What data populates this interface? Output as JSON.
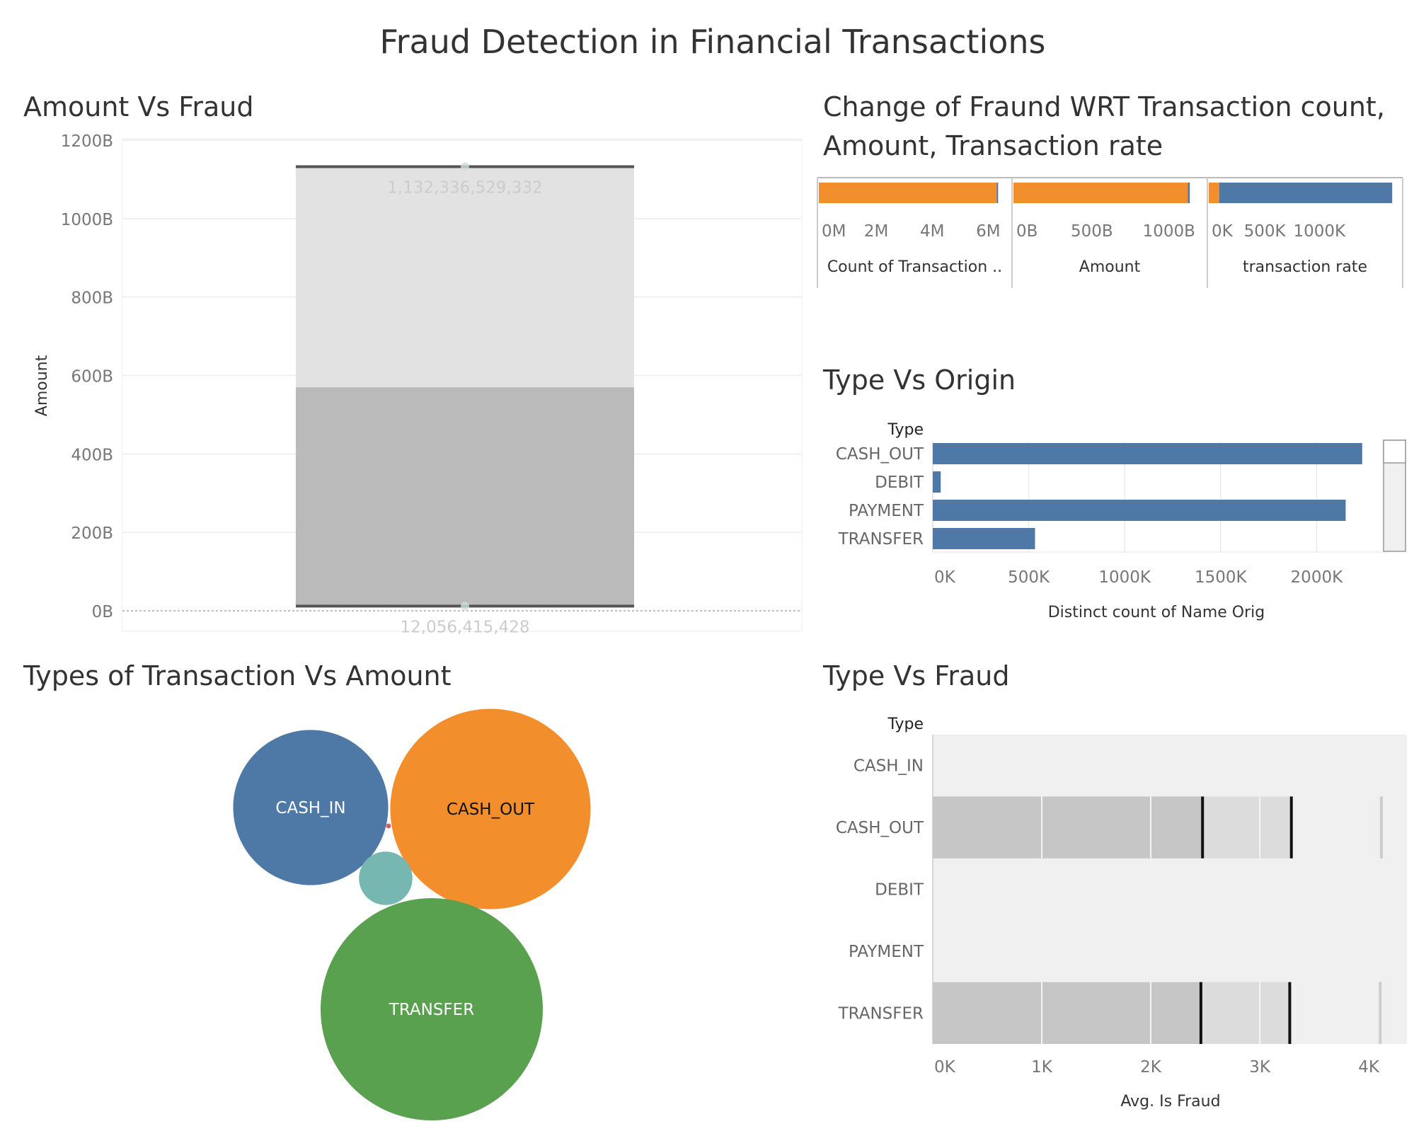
{
  "dashboard_title": "Fraud Detection in Financial Transactions",
  "chart_data": [
    {
      "id": "amount_vs_fraud",
      "type": "bar",
      "title": "Amount Vs Fraud",
      "xlabel": "",
      "ylabel": "Amount",
      "ylim": [
        0,
        1200000000000
      ],
      "yticks": [
        {
          "v": 0,
          "label": "0B"
        },
        {
          "v": 200000000000,
          "label": "200B"
        },
        {
          "v": 400000000000,
          "label": "400B"
        },
        {
          "v": 600000000000,
          "label": "600B"
        },
        {
          "v": 800000000000,
          "label": "800B"
        },
        {
          "v": 1000000000000,
          "label": "1000B"
        },
        {
          "v": 1200000000000,
          "label": "1200B"
        }
      ],
      "bands": [
        {
          "from": 12056415428,
          "to": 570000000000,
          "color": "#bababa"
        },
        {
          "from": 570000000000,
          "to": 1132336529332,
          "color": "#e2e2e2"
        }
      ],
      "markers": [
        {
          "value": 1132336529332,
          "label": "1,132,336,529,332"
        },
        {
          "value": 12056415428,
          "label": "12,056,415,428"
        }
      ],
      "grid": true
    },
    {
      "id": "change_of_fraud",
      "type": "bar",
      "title": "Change of Fraund WRT Transaction count, Amount, Transaction rate",
      "title_lines": [
        "Change of Fraund WRT Transaction count,",
        "Amount, Transaction rate"
      ],
      "panels": [
        {
          "name": "Count of Transaction ..",
          "xlim": [
            0,
            6800000
          ],
          "ticks": [
            {
              "v": 0,
              "label": "0M"
            },
            {
              "v": 2000000,
              "label": "2M"
            },
            {
              "v": 4000000,
              "label": "4M"
            },
            {
              "v": 6000000,
              "label": "6M"
            }
          ],
          "segments": [
            {
              "value": 6354407,
              "color": "#f28e2b"
            },
            {
              "value": 8213,
              "color": "#4e79a7"
            }
          ]
        },
        {
          "name": "Amount",
          "xlim": [
            0,
            1240000000000
          ],
          "ticks": [
            {
              "v": 0,
              "label": "0B"
            },
            {
              "v": 500000000000,
              "label": "500B"
            },
            {
              "v": 1000000000000,
              "label": "1000B"
            }
          ],
          "segments": [
            {
              "value": 1132336529332,
              "color": "#f28e2b"
            },
            {
              "value": 12056415428,
              "color": "#4e79a7"
            }
          ]
        },
        {
          "name": "transaction rate",
          "xlim": [
            0,
            1750000
          ],
          "ticks": [
            {
              "v": 0,
              "label": "0K"
            },
            {
              "v": 500000,
              "label": "500K"
            },
            {
              "v": 1000000,
              "label": "1000K"
            }
          ],
          "segments": [
            {
              "value": 95000,
              "color": "#f28e2b"
            },
            {
              "value": 1585000,
              "color": "#4e79a7"
            }
          ]
        }
      ]
    },
    {
      "id": "type_vs_origin",
      "type": "bar",
      "orientation": "horizontal",
      "title": "Type Vs Origin",
      "ylabel": "Type",
      "xlabel": "Distinct count of Name Orig",
      "categories": [
        "CASH_OUT",
        "DEBIT",
        "PAYMENT",
        "TRANSFER"
      ],
      "values": [
        2237500,
        41432,
        2151495,
        532909
      ],
      "xlim": [
        0,
        2360000
      ],
      "xticks": [
        {
          "v": 0,
          "label": "0K"
        },
        {
          "v": 500000,
          "label": "500K"
        },
        {
          "v": 1000000,
          "label": "1000K"
        },
        {
          "v": 1500000,
          "label": "1500K"
        },
        {
          "v": 2000000,
          "label": "2000K"
        }
      ],
      "color": "#4e79a7",
      "grid": true
    },
    {
      "id": "types_vs_amount",
      "type": "bubble",
      "title": "Types of Transaction Vs Amount",
      "bubbles": [
        {
          "label": "CASH_IN",
          "size": 236367391912,
          "color": "#4e79a7",
          "text_color": "#ffffff"
        },
        {
          "label": "CASH_OUT",
          "size": 394412995224,
          "color": "#f28e2b",
          "text_color": "#111111"
        },
        {
          "label": "",
          "size": 28093371139,
          "color": "#76b7b2",
          "text_color": "#ffffff"
        },
        {
          "label": "TRANSFER",
          "size": 485291987263,
          "color": "#59a14f",
          "text_color": "#ffffff"
        },
        {
          "label": "",
          "size": 227199221,
          "color": "#e15759",
          "text_color": "#ffffff"
        }
      ]
    },
    {
      "id": "type_vs_fraud",
      "type": "bar",
      "orientation": "horizontal",
      "title": "Type Vs Fraud",
      "ylabel": "Type",
      "xlabel": "Avg. Is Fraud",
      "categories": [
        "CASH_IN",
        "CASH_OUT",
        "DEBIT",
        "PAYMENT",
        "TRANSFER"
      ],
      "xlim": [
        0,
        4350
      ],
      "xticks": [
        {
          "v": 0,
          "label": "0K"
        },
        {
          "v": 1000,
          "label": "1K"
        },
        {
          "v": 2000,
          "label": "2K"
        },
        {
          "v": 3000,
          "label": "3K"
        },
        {
          "v": 4000,
          "label": "4K"
        }
      ],
      "rows": [
        {
          "category": "CASH_IN",
          "band_inner": null,
          "band_outer": null,
          "marks": [],
          "edge": null
        },
        {
          "category": "CASH_OUT",
          "band_inner": 2475,
          "band_outer": 3290,
          "marks": [
            2475,
            3290
          ],
          "edge": 4116
        },
        {
          "category": "DEBIT",
          "band_inner": null,
          "band_outer": null,
          "marks": [],
          "edge": null
        },
        {
          "category": "PAYMENT",
          "band_inner": null,
          "band_outer": null,
          "marks": [],
          "edge": null
        },
        {
          "category": "TRANSFER",
          "band_inner": 2460,
          "band_outer": 3275,
          "marks": [
            2460,
            3275
          ],
          "edge": 4105
        }
      ],
      "grid": true
    }
  ]
}
